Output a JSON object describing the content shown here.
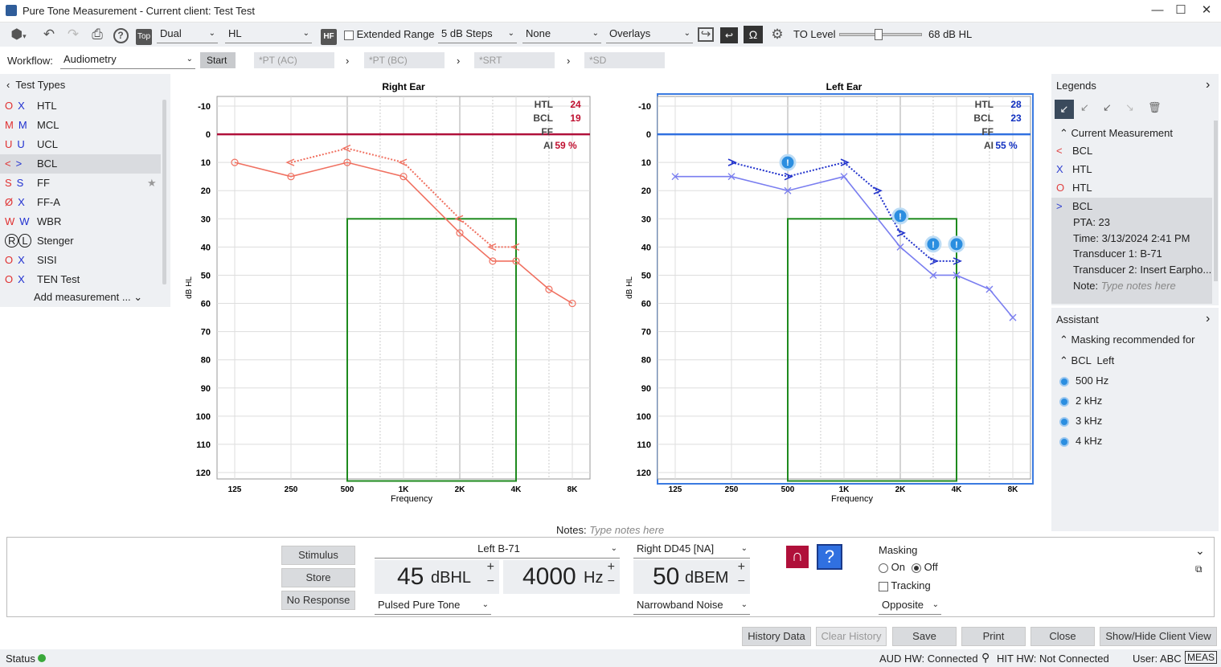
{
  "window": {
    "title": "Pure Tone Measurement - Current client: Test Test"
  },
  "toolbar": {
    "mode": "Dual",
    "scale": "HL",
    "extended_range_label": "Extended Range",
    "steps": "5 dB Steps",
    "none_select": "None",
    "overlays": "Overlays",
    "to_level_label": "TO Level",
    "to_level_value": "68 dB HL",
    "to_level_fraction": 0.46,
    "hf_label": "HF",
    "top_label": "Top"
  },
  "workflow": {
    "label": "Workflow:",
    "value": "Audiometry",
    "start": "Start",
    "steps": [
      "*PT (AC)",
      "*PT (BC)",
      "*SRT",
      "*SD"
    ]
  },
  "test_types": {
    "header": "Test Types",
    "items": [
      {
        "label": "HTL",
        "sym_r": "O",
        "sym_l": "X"
      },
      {
        "label": "MCL",
        "sym_r": "M",
        "sym_l": "M"
      },
      {
        "label": "UCL",
        "sym_r": "U",
        "sym_l": "U"
      },
      {
        "label": "BCL",
        "sym_r": "<",
        "sym_l": ">"
      },
      {
        "label": "FF",
        "sym_r": "S",
        "sym_l": "S"
      },
      {
        "label": "FF-A",
        "sym_r": "Ø",
        "sym_l": "X"
      },
      {
        "label": "WBR",
        "sym_r": "W",
        "sym_l": "W"
      },
      {
        "label": "Stenger",
        "sym_r": "R",
        "sym_l": "L"
      },
      {
        "label": "SISI",
        "sym_r": "O",
        "sym_l": "X"
      },
      {
        "label": "TEN Test",
        "sym_r": "O",
        "sym_l": "X"
      }
    ],
    "add_label": "Add measurement ..."
  },
  "right_ear": {
    "title": "Right Ear",
    "htl_label": "HTL",
    "htl": "24",
    "bcl_label": "BCL",
    "bcl": "19",
    "ff_label": "FF",
    "ai_label": "AI",
    "ai": "59 %"
  },
  "left_ear": {
    "title": "Left Ear",
    "htl_label": "HTL",
    "htl": "28",
    "bcl_label": "BCL",
    "bcl": "23",
    "ff_label": "FF",
    "ai_label": "AI",
    "ai": "55 %"
  },
  "chart_data": [
    {
      "type": "line",
      "title": "Right Ear",
      "xlabel": "Frequency",
      "ylabel": "dB HL",
      "x_ticks": [
        "125",
        "250",
        "500",
        "1K",
        "2K",
        "4K",
        "8K"
      ],
      "y_ticks": [
        "-10",
        "0",
        "10",
        "20",
        "30",
        "40",
        "50",
        "60",
        "70",
        "80",
        "90",
        "100",
        "110",
        "120"
      ],
      "ylim": [
        -10,
        120
      ],
      "reference_line": 0,
      "masking_box": {
        "x0": 500,
        "x1": 4000,
        "y0": 30,
        "y1": 123
      },
      "series": [
        {
          "name": "HTL",
          "style": "solid",
          "color": "#f07060",
          "points": [
            [
              125,
              10
            ],
            [
              250,
              15
            ],
            [
              500,
              10
            ],
            [
              1000,
              15
            ],
            [
              2000,
              35
            ],
            [
              3000,
              45
            ],
            [
              4000,
              45
            ],
            [
              6000,
              55
            ],
            [
              8000,
              60
            ]
          ]
        },
        {
          "name": "BCL",
          "style": "dotted",
          "color": "#f07060",
          "points": [
            [
              250,
              10
            ],
            [
              500,
              5
            ],
            [
              1000,
              10
            ],
            [
              2000,
              30
            ],
            [
              3000,
              40
            ],
            [
              4000,
              40
            ]
          ]
        }
      ]
    },
    {
      "type": "line",
      "title": "Left Ear",
      "xlabel": "Frequency",
      "ylabel": "dB HL",
      "x_ticks": [
        "125",
        "250",
        "500",
        "1K",
        "2K",
        "4K",
        "8K"
      ],
      "y_ticks": [
        "-10",
        "0",
        "10",
        "20",
        "30",
        "40",
        "50",
        "60",
        "70",
        "80",
        "90",
        "100",
        "110",
        "120"
      ],
      "ylim": [
        -10,
        120
      ],
      "reference_line": 0,
      "masking_box": {
        "x0": 500,
        "x1": 4000,
        "y0": 30,
        "y1": 123
      },
      "series": [
        {
          "name": "HTL",
          "style": "solid",
          "color": "#7a7ef0",
          "points": [
            [
              125,
              15
            ],
            [
              250,
              15
            ],
            [
              500,
              20
            ],
            [
              1000,
              15
            ],
            [
              2000,
              40
            ],
            [
              3000,
              50
            ],
            [
              4000,
              50
            ],
            [
              6000,
              55
            ],
            [
              8000,
              65
            ]
          ]
        },
        {
          "name": "BCL",
          "style": "dotted",
          "color": "#2233cc",
          "points": [
            [
              250,
              10
            ],
            [
              500,
              15
            ],
            [
              1000,
              10
            ],
            [
              1500,
              20
            ],
            [
              2000,
              35
            ],
            [
              3000,
              45
            ],
            [
              4000,
              45
            ]
          ]
        }
      ],
      "warnings": [
        [
          500,
          10
        ],
        [
          2000,
          29
        ],
        [
          3000,
          39
        ],
        [
          4000,
          39
        ]
      ]
    }
  ],
  "notes": {
    "label": "Notes:",
    "placeholder": "Type notes here"
  },
  "legends": {
    "header": "Legends",
    "group": "Current Measurement",
    "items": [
      {
        "sym": "<",
        "label": "BCL"
      },
      {
        "sym": "X",
        "label": "HTL"
      },
      {
        "sym": "O",
        "label": "HTL"
      },
      {
        "sym": ">",
        "label": "BCL"
      }
    ],
    "detail": {
      "pta": "PTA: 23",
      "time": "Time: 3/13/2024 2:41 PM",
      "t1": "Transducer 1: B-71",
      "t2": "Transducer 2: Insert Earpho...",
      "note_label": "Note:",
      "note_placeholder": "Type notes here"
    }
  },
  "assistant": {
    "header": "Assistant",
    "masking": "Masking recommended for",
    "group": "BCL  Left",
    "items": [
      "500 Hz",
      "2 kHz",
      "3 kHz",
      "4 kHz"
    ]
  },
  "control": {
    "stimulus": "Stimulus",
    "store": "Store",
    "no_response": "No Response",
    "left_transducer": "Left B-71",
    "level_value": "45",
    "level_unit": "dBHL",
    "freq_value": "4000",
    "freq_unit": "Hz",
    "tone": "Pulsed Pure Tone",
    "right_transducer": "Right DD45 [NA]",
    "mask_value": "50",
    "mask_unit": "dBEM",
    "noise": "Narrowband Noise",
    "masking_label": "Masking",
    "on_label": "On",
    "off_label": "Off",
    "tracking_label": "Tracking",
    "opposite": "Opposite"
  },
  "buttons": {
    "history": "History Data",
    "clear_history": "Clear History",
    "save": "Save",
    "print": "Print",
    "close": "Close",
    "show_hide": "Show/Hide Client View"
  },
  "status": {
    "label": "Status",
    "aud_hw": "AUD HW: Connected",
    "hit_hw": "HIT HW: Not Connected",
    "user": "User: ABC",
    "meas": "MEAS"
  },
  "colors": {
    "right": "#f07060",
    "left": "#6a6ef0",
    "masking_box": "#1e8a1e",
    "zero_right": "#b0103a",
    "zero_left": "#3070e0"
  }
}
